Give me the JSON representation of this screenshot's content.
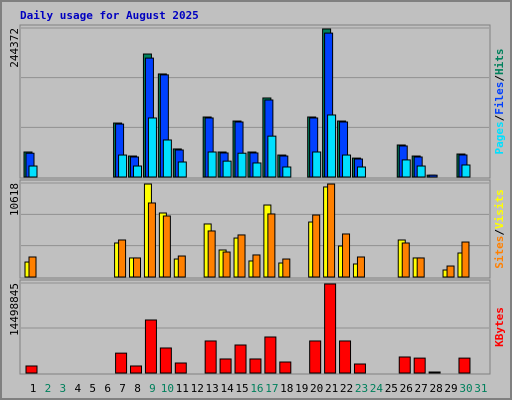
{
  "chart_data": {
    "type": "bar",
    "title": "Daily usage for August 2025",
    "categories": [
      "1",
      "2",
      "3",
      "4",
      "5",
      "6",
      "7",
      "8",
      "9",
      "10",
      "11",
      "12",
      "13",
      "14",
      "15",
      "16",
      "17",
      "18",
      "19",
      "20",
      "21",
      "22",
      "23",
      "24",
      "25",
      "26",
      "27",
      "28",
      "29",
      "30",
      "31"
    ],
    "category_colors": [
      "#000000",
      "#00805c",
      "#00805c",
      "#000000",
      "#000000",
      "#000000",
      "#000000",
      "#000000",
      "#00805c",
      "#00805c",
      "#000000",
      "#000000",
      "#000000",
      "#000000",
      "#000000",
      "#00805c",
      "#00805c",
      "#000000",
      "#000000",
      "#000000",
      "#000000",
      "#000000",
      "#00805c",
      "#00805c",
      "#000000",
      "#000000",
      "#000000",
      "#000000",
      "#000000",
      "#00805c",
      "#00805c"
    ],
    "panels": [
      {
        "ylim": [
          0,
          244372
        ],
        "yticks": [
          244372
        ],
        "gridlines": [
          81457,
          162915
        ],
        "series": [
          {
            "name": "Hits",
            "color": "#00805c",
            "values": [
              41000,
              0,
              0,
              0,
              0,
              0,
              88500,
              34400,
              201700,
              169000,
              46000,
              0,
              98400,
              41000,
              91800,
              41000,
              129600,
              36000,
              0,
              98400,
              242700,
              91800,
              31000,
              0,
              0,
              52500,
              34400,
              3000,
              0,
              37700,
              0
            ]
          },
          {
            "name": "Files",
            "color": "#0040ff",
            "values": [
              39000,
              0,
              0,
              0,
              0,
              0,
              86800,
              32800,
              195000,
              167500,
              44300,
              0,
              96800,
              39400,
              90200,
              39400,
              126300,
              34400,
              0,
              96800,
              236000,
              90200,
              29500,
              0,
              0,
              50900,
              32800,
              3000,
              0,
              36100,
              0
            ]
          },
          {
            "name": "Pages",
            "color": "#00e0ff",
            "values": [
              18000,
              0,
              0,
              0,
              0,
              0,
              36000,
              18000,
              96800,
              60700,
              24600,
              0,
              41000,
              26000,
              39000,
              23000,
              67000,
              16400,
              0,
              41000,
              101700,
              36000,
              16400,
              0,
              0,
              28000,
              18000,
              0,
              0,
              19700,
              0
            ]
          }
        ]
      },
      {
        "ylim": [
          0,
          10618
        ],
        "yticks": [
          10618
        ],
        "gridlines": [
          3539,
          7079
        ],
        "series": [
          {
            "name": "Visits",
            "color": "#ffff00",
            "values": [
              1690,
              0,
              0,
              0,
              0,
              0,
              3840,
              2150,
              10500,
              7230,
              2030,
              0,
              5990,
              3050,
              4400,
              1810,
              8130,
              1580,
              0,
              6210,
              10170,
              3500,
              1470,
              0,
              0,
              4180,
              2150,
              0,
              790,
              2710,
              0
            ]
          },
          {
            "name": "Sites",
            "color": "#ff8000",
            "values": [
              2260,
              0,
              0,
              0,
              0,
              0,
              4180,
              2150,
              8360,
              6890,
              2370,
              0,
              5200,
              2820,
              4750,
              2490,
              7120,
              2030,
              0,
              7000,
              10500,
              4860,
              2260,
              0,
              0,
              3840,
              2150,
              0,
              1240,
              3950,
              0
            ]
          }
        ]
      },
      {
        "ylim": [
          0,
          14498845
        ],
        "yticks": [
          14498845
        ],
        "gridlines": [
          7249422
        ],
        "series": [
          {
            "name": "KBytes",
            "color": "#ff0000",
            "values": [
              1130000,
              0,
              0,
              0,
              0,
              0,
              3200000,
              1130000,
              8540000,
              4030000,
              1610000,
              0,
              5160000,
              2260000,
              4510000,
              2260000,
              5800000,
              1770000,
              0,
              5160000,
              14340000,
              5160000,
              1450000,
              0,
              0,
              2580000,
              2400000,
              160000,
              0,
              2400000,
              0
            ]
          }
        ]
      }
    ]
  }
}
